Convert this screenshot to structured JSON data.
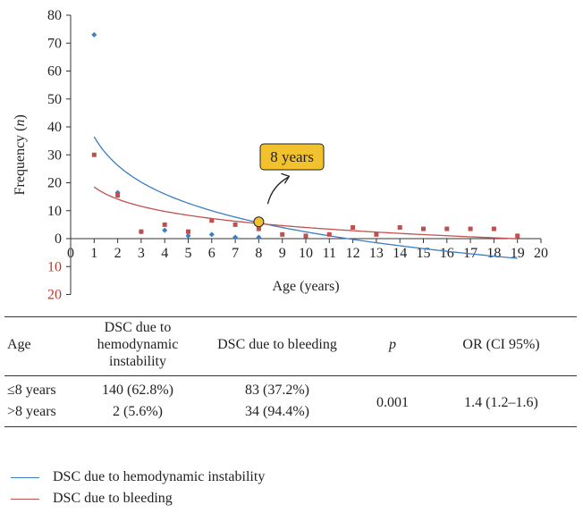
{
  "chart_data": {
    "type": "scatter",
    "xlabel": "Age (years)",
    "ylabel_main": "Frequency (",
    "ylabel_italic": "n",
    "ylabel_end": ")",
    "xlim": [
      0,
      20
    ],
    "ylim": [
      -20,
      80
    ],
    "x_ticks": [
      "0",
      "1",
      "2",
      "3",
      "4",
      "5",
      "6",
      "7",
      "8",
      "9",
      "10",
      "11",
      "12",
      "13",
      "14",
      "15",
      "16",
      "17",
      "18",
      "19",
      "20"
    ],
    "y_ticks_positive": [
      "0",
      "10",
      "20",
      "30",
      "40",
      "50",
      "60",
      "70",
      "80"
    ],
    "y_ticks_negative": [
      "10",
      "20"
    ],
    "series": [
      {
        "name": "DSC due to hemodynamic instability",
        "color": "#3b7dc4",
        "marker": "diamond",
        "x": [
          1,
          2,
          3,
          4,
          5,
          6,
          7,
          8
        ],
        "y": [
          73,
          16.5,
          2.5,
          3,
          1,
          1.5,
          0.5,
          0.5
        ],
        "trend": {
          "type": "log",
          "a": 36.5,
          "b": -14.8,
          "x_range": [
            1,
            19
          ]
        }
      },
      {
        "name": "DSC due to bleeding",
        "color": "#c0504d",
        "marker": "square",
        "x": [
          1,
          2,
          3,
          4,
          5,
          6,
          7,
          8,
          9,
          10,
          11,
          12,
          13,
          14,
          15,
          16,
          17,
          18,
          19
        ],
        "y": [
          30,
          15.5,
          2.5,
          5,
          2.5,
          6.5,
          5,
          3.5,
          1.5,
          1,
          1.5,
          4,
          1.5,
          4,
          3.5,
          3.5,
          3.5,
          3.5,
          1
        ],
        "trend": {
          "type": "log",
          "a": 18.5,
          "b": -6.3,
          "x_range": [
            1,
            19
          ]
        }
      }
    ],
    "annotation": {
      "text": "8 years",
      "x": 8,
      "y": 6,
      "highlight_color": "#f2c12e"
    }
  },
  "table": {
    "headers": [
      "Age",
      "DSC due to hemodynamic instability",
      "DSC due to bleeding",
      "p",
      "OR (CI 95%)"
    ],
    "rows": [
      [
        "≤8 years",
        "140 (62.8%)",
        "83 (37.2%)"
      ],
      [
        ">8 years",
        "2 (5.6%)",
        "34 (94.4%)"
      ]
    ],
    "p_value": "0.001",
    "or_value": "1.4 (1.2–1.6)"
  },
  "legend": [
    {
      "label": "DSC due to hemodynamic instability",
      "color": "#3b7dc4"
    },
    {
      "label": "DSC due to bleeding",
      "color": "#c0504d"
    }
  ]
}
